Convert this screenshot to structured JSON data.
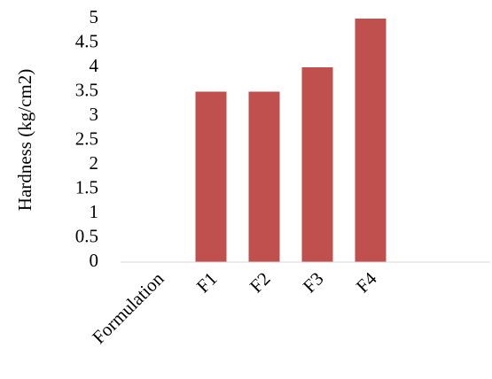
{
  "chart_data": {
    "type": "bar",
    "categories": [
      "Formulation",
      "F1",
      "F2",
      "F3",
      "F4"
    ],
    "values": [
      null,
      3.5,
      3.5,
      4,
      5
    ],
    "ylabel": "Hardness (kg/cm2)",
    "xlabel": "",
    "ylim": [
      0,
      5
    ],
    "yticks": [
      "0",
      "0.5",
      "1",
      "1.5",
      "2",
      "2.5",
      "3",
      "3.5",
      "4",
      "4.5",
      "5"
    ],
    "bar_color": "#C0504D",
    "grid": false,
    "legend": "none"
  }
}
